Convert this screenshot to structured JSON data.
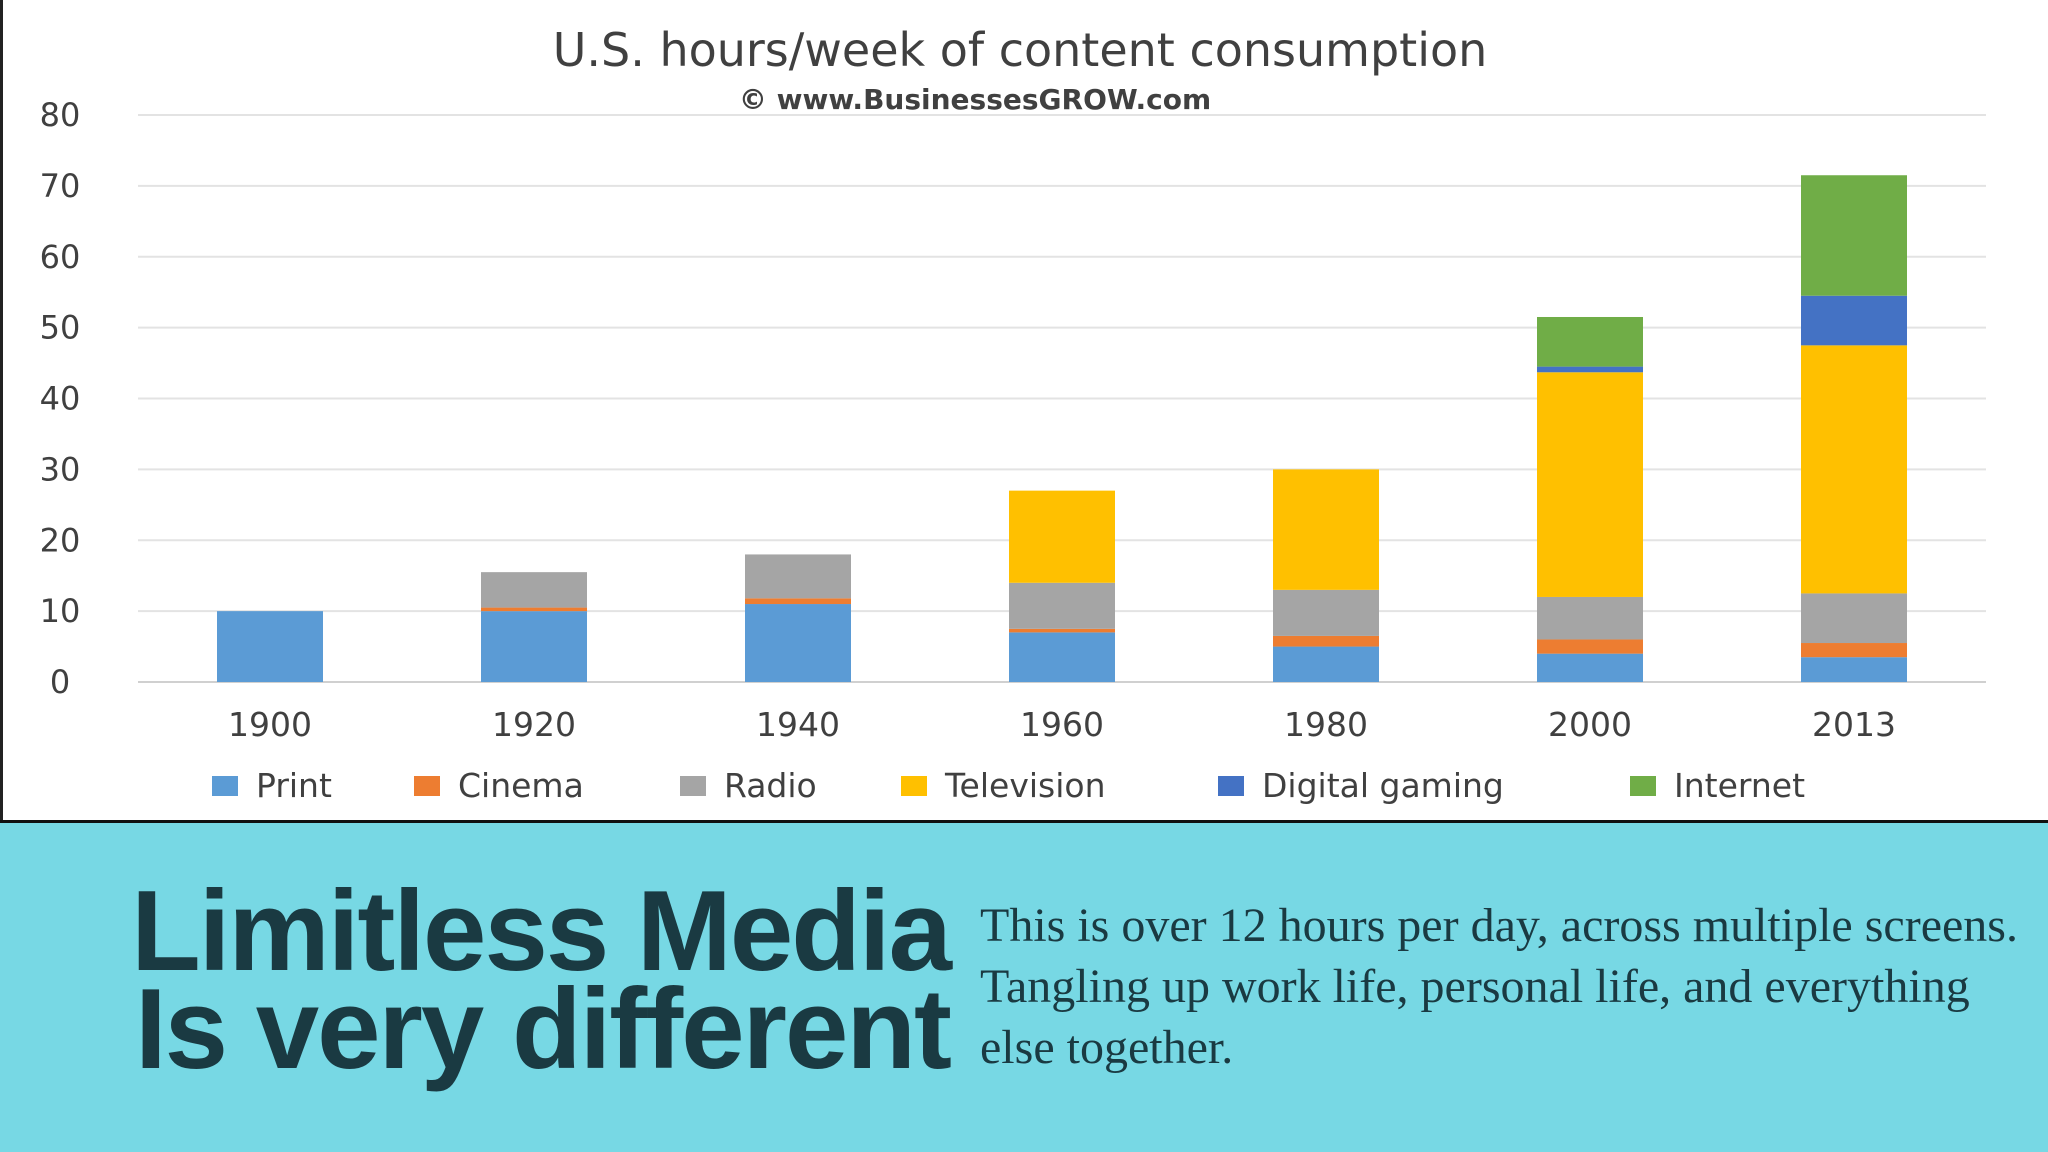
{
  "chart_data": {
    "type": "bar",
    "stacked": true,
    "title": "U.S. hours/week of content consumption",
    "subtitle": "© www.BusinessesGROW.com",
    "xlabel": "",
    "ylabel": "",
    "ylim": [
      0,
      80
    ],
    "yticks": [
      0,
      10,
      20,
      30,
      40,
      50,
      60,
      70,
      80
    ],
    "grid": true,
    "legend_position": "bottom",
    "categories": [
      "1900",
      "1920",
      "1940",
      "1960",
      "1980",
      "2000",
      "2013"
    ],
    "series": [
      {
        "name": "Print",
        "color": "#5b9bd5",
        "values": [
          10,
          10,
          11,
          7,
          5,
          4,
          3.5
        ]
      },
      {
        "name": "Cinema",
        "color": "#ed7d31",
        "values": [
          0,
          0.5,
          0.8,
          0.5,
          1.5,
          2,
          2
        ]
      },
      {
        "name": "Radio",
        "color": "#a5a5a5",
        "values": [
          0,
          5,
          6.2,
          6.5,
          6.5,
          6,
          7
        ]
      },
      {
        "name": "Television",
        "color": "#ffc000",
        "values": [
          0,
          0,
          0,
          13,
          17,
          31.7,
          35
        ]
      },
      {
        "name": "Digital gaming",
        "color": "#4472c4",
        "values": [
          0,
          0,
          0,
          0,
          0,
          0.8,
          7
        ]
      },
      {
        "name": "Internet",
        "color": "#70ad47",
        "values": [
          0,
          0,
          0,
          0,
          0,
          7,
          17
        ]
      }
    ]
  },
  "slide": {
    "headline_line1": "Limitless Media",
    "headline_line2": "Is very different",
    "body": "This is over 12 hours per day, across multiple screens. Tangling up work life, personal life, and everything else together."
  }
}
